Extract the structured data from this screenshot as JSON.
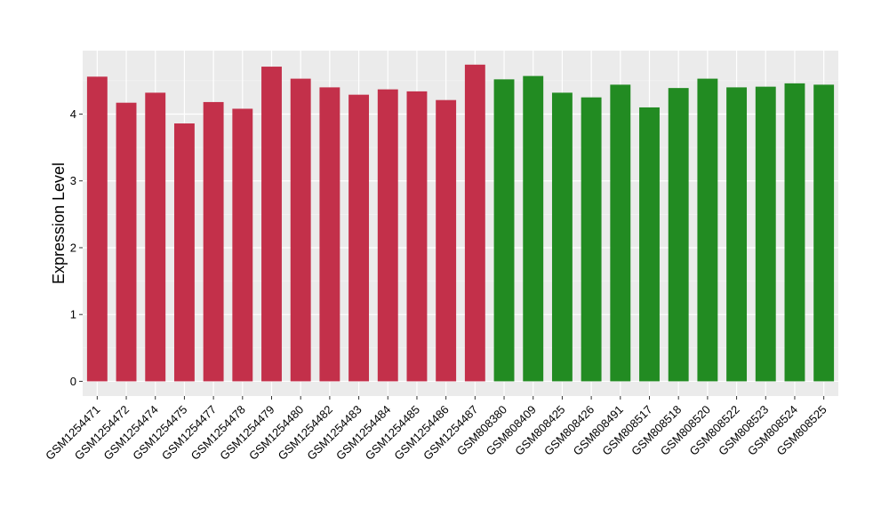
{
  "chart_data": {
    "type": "bar",
    "title": "",
    "xlabel": "",
    "ylabel": "Expression Level",
    "ylim": [
      -0.22,
      4.95
    ],
    "yticks": [
      0,
      1,
      2,
      3,
      4
    ],
    "grid": true,
    "background": "#ebebeb",
    "categories": [
      "GSM1254471",
      "GSM1254472",
      "GSM1254474",
      "GSM1254475",
      "GSM1254477",
      "GSM1254478",
      "GSM1254479",
      "GSM1254480",
      "GSM1254482",
      "GSM1254483",
      "GSM1254484",
      "GSM1254485",
      "GSM1254486",
      "GSM1254487",
      "GSM808380",
      "GSM808409",
      "GSM808425",
      "GSM808426",
      "GSM808491",
      "GSM808517",
      "GSM808518",
      "GSM808520",
      "GSM808522",
      "GSM808523",
      "GSM808524",
      "GSM808525"
    ],
    "values": [
      4.56,
      4.17,
      4.32,
      3.86,
      4.18,
      4.08,
      4.71,
      4.53,
      4.4,
      4.29,
      4.37,
      4.34,
      4.21,
      4.74,
      4.52,
      4.57,
      4.32,
      4.25,
      4.44,
      4.1,
      4.39,
      4.53,
      4.4,
      4.41,
      4.46,
      4.44
    ],
    "bar_colors": [
      "#c3304a",
      "#c3304a",
      "#c3304a",
      "#c3304a",
      "#c3304a",
      "#c3304a",
      "#c3304a",
      "#c3304a",
      "#c3304a",
      "#c3304a",
      "#c3304a",
      "#c3304a",
      "#c3304a",
      "#c3304a",
      "#228b22",
      "#228b22",
      "#228b22",
      "#228b22",
      "#228b22",
      "#228b22",
      "#228b22",
      "#228b22",
      "#228b22",
      "#228b22",
      "#228b22",
      "#228b22"
    ]
  }
}
